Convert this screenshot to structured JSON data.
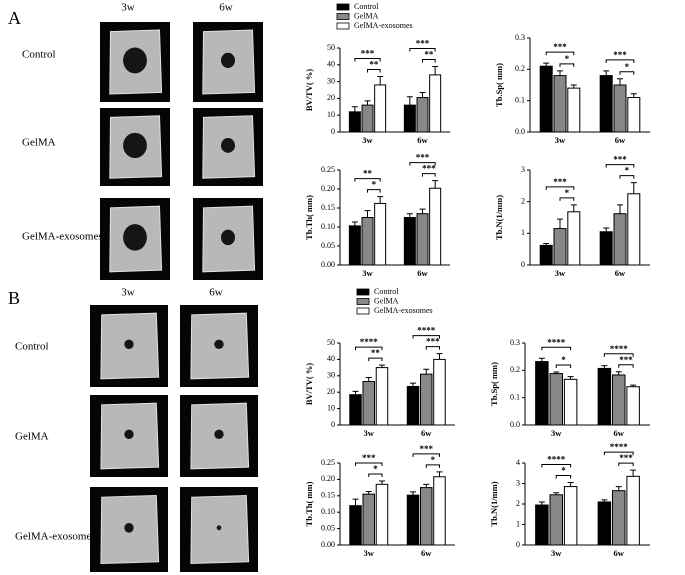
{
  "panels": [
    {
      "letter": "A",
      "columns": [
        "3w",
        "6w"
      ],
      "rows": [
        "Control",
        "GelMA",
        "GelMA-exosomes"
      ],
      "legend": [
        {
          "name": "Control",
          "color": "#000000"
        },
        {
          "name": "GelMA",
          "color": "#888888"
        },
        {
          "name": "GelMA-exosomes",
          "color": "#ffffff"
        }
      ],
      "chart_data": [
        {
          "type": "bar",
          "ylabel": "BV/TV( %)",
          "categories": [
            "3w",
            "6w"
          ],
          "ylim": [
            0,
            50
          ],
          "yticks": [
            0,
            10,
            20,
            30,
            40,
            50
          ],
          "series": [
            {
              "values": [
                12,
                16
              ],
              "errors": [
                3,
                5
              ]
            },
            {
              "values": [
                16,
                20.5
              ],
              "errors": [
                2.5,
                3
              ]
            },
            {
              "values": [
                28,
                34
              ],
              "errors": [
                5,
                5
              ]
            }
          ],
          "significance": [
            [
              "***",
              "**"
            ],
            [
              "***",
              "**"
            ]
          ]
        },
        {
          "type": "bar",
          "ylabel": "Tb.Sp( mm)",
          "categories": [
            "3w",
            "6w"
          ],
          "ylim": [
            0,
            0.3
          ],
          "yticks": [
            {
              "value": 0,
              "label": "0.0"
            },
            0.1,
            0.2,
            0.3
          ],
          "series": [
            {
              "values": [
                0.21,
                0.18
              ],
              "errors": [
                0.01,
                0.015
              ]
            },
            {
              "values": [
                0.18,
                0.15
              ],
              "errors": [
                0.015,
                0.02
              ]
            },
            {
              "values": [
                0.14,
                0.11
              ],
              "errors": [
                0.01,
                0.012
              ]
            }
          ],
          "significance": [
            [
              "***",
              "*"
            ],
            [
              "***",
              "*"
            ]
          ]
        },
        {
          "type": "bar",
          "ylabel": "Tb.Th( mm)",
          "categories": [
            "3w",
            "6w"
          ],
          "ylim": [
            0,
            0.25
          ],
          "yticks": [
            {
              "value": 0,
              "label": "0.00"
            },
            0.05,
            {
              "value": 0.1,
              "label": "0.10"
            },
            0.15,
            {
              "value": 0.2,
              "label": "0.20"
            },
            0.25
          ],
          "series": [
            {
              "values": [
                0.103,
                0.125
              ],
              "errors": [
                0.01,
                0.01
              ]
            },
            {
              "values": [
                0.125,
                0.135
              ],
              "errors": [
                0.018,
                0.012
              ]
            },
            {
              "values": [
                0.162,
                0.202
              ],
              "errors": [
                0.018,
                0.02
              ]
            }
          ],
          "significance": [
            [
              "**",
              "*"
            ],
            [
              "***",
              "***"
            ]
          ]
        },
        {
          "type": "bar",
          "ylabel": "Tb.N(1/mm)",
          "categories": [
            "3w",
            "6w"
          ],
          "ylim": [
            0,
            3
          ],
          "yticks": [
            0,
            1,
            2,
            3
          ],
          "series": [
            {
              "values": [
                0.62,
                1.05
              ],
              "errors": [
                0.06,
                0.12
              ]
            },
            {
              "values": [
                1.15,
                1.62
              ],
              "errors": [
                0.3,
                0.28
              ]
            },
            {
              "values": [
                1.68,
                2.25
              ],
              "errors": [
                0.22,
                0.35
              ]
            }
          ],
          "significance": [
            [
              "***",
              "*"
            ],
            [
              "***",
              "*"
            ]
          ]
        }
      ]
    },
    {
      "letter": "B",
      "columns": [
        "3w",
        "6w"
      ],
      "rows": [
        "Control",
        "GelMA",
        "GelMA-exosomes"
      ],
      "legend": [
        {
          "name": "Control",
          "color": "#000000"
        },
        {
          "name": "GelMA",
          "color": "#888888"
        },
        {
          "name": "GelMA-exosomes",
          "color": "#ffffff"
        }
      ],
      "chart_data": [
        {
          "type": "bar",
          "ylabel": "BV/TV( %)",
          "categories": [
            "3w",
            "6w"
          ],
          "ylim": [
            0,
            50
          ],
          "yticks": [
            0,
            10,
            20,
            30,
            40,
            50
          ],
          "series": [
            {
              "values": [
                18.5,
                23.5
              ],
              "errors": [
                2,
                2
              ]
            },
            {
              "values": [
                26.5,
                31
              ],
              "errors": [
                2.5,
                3
              ]
            },
            {
              "values": [
                35,
                40
              ],
              "errors": [
                1.5,
                3.5
              ]
            }
          ],
          "significance": [
            [
              "****",
              "**"
            ],
            [
              "****",
              "***"
            ]
          ]
        },
        {
          "type": "bar",
          "ylabel": "Tb.Sp( mm)",
          "categories": [
            "3w",
            "6w"
          ],
          "ylim": [
            0,
            0.3
          ],
          "yticks": [
            {
              "value": 0,
              "label": "0.0"
            },
            0.1,
            0.2,
            0.3
          ],
          "series": [
            {
              "values": [
                0.232,
                0.207
              ],
              "errors": [
                0.012,
                0.01
              ]
            },
            {
              "values": [
                0.188,
                0.183
              ],
              "errors": [
                0.006,
                0.012
              ]
            },
            {
              "values": [
                0.167,
                0.14
              ],
              "errors": [
                0.01,
                0.006
              ]
            }
          ],
          "significance": [
            [
              "****",
              "*"
            ],
            [
              "****",
              "***"
            ]
          ]
        },
        {
          "type": "bar",
          "ylabel": "Tb.Th( mm)",
          "categories": [
            "3w",
            "6w"
          ],
          "ylim": [
            0,
            0.25
          ],
          "yticks": [
            {
              "value": 0,
              "label": "0.00"
            },
            0.05,
            {
              "value": 0.1,
              "label": "0.10"
            },
            0.15,
            {
              "value": 0.2,
              "label": "0.20"
            },
            0.25
          ],
          "series": [
            {
              "values": [
                0.12,
                0.152
              ],
              "errors": [
                0.02,
                0.01
              ]
            },
            {
              "values": [
                0.155,
                0.175
              ],
              "errors": [
                0.008,
                0.01
              ]
            },
            {
              "values": [
                0.185,
                0.208
              ],
              "errors": [
                0.01,
                0.015
              ]
            }
          ],
          "significance": [
            [
              "***",
              "*"
            ],
            [
              "***",
              "*"
            ]
          ]
        },
        {
          "type": "bar",
          "ylabel": "Tb.N(1/mm)",
          "categories": [
            "3w",
            "6w"
          ],
          "ylim": [
            0,
            4
          ],
          "yticks": [
            0,
            1,
            2,
            3,
            4
          ],
          "series": [
            {
              "values": [
                1.95,
                2.1
              ],
              "errors": [
                0.15,
                0.1
              ]
            },
            {
              "values": [
                2.45,
                2.65
              ],
              "errors": [
                0.1,
                0.2
              ]
            },
            {
              "values": [
                2.85,
                3.35
              ],
              "errors": [
                0.2,
                0.3
              ]
            }
          ],
          "significance": [
            [
              "****",
              "*"
            ],
            [
              "****",
              "***"
            ]
          ]
        }
      ]
    }
  ]
}
